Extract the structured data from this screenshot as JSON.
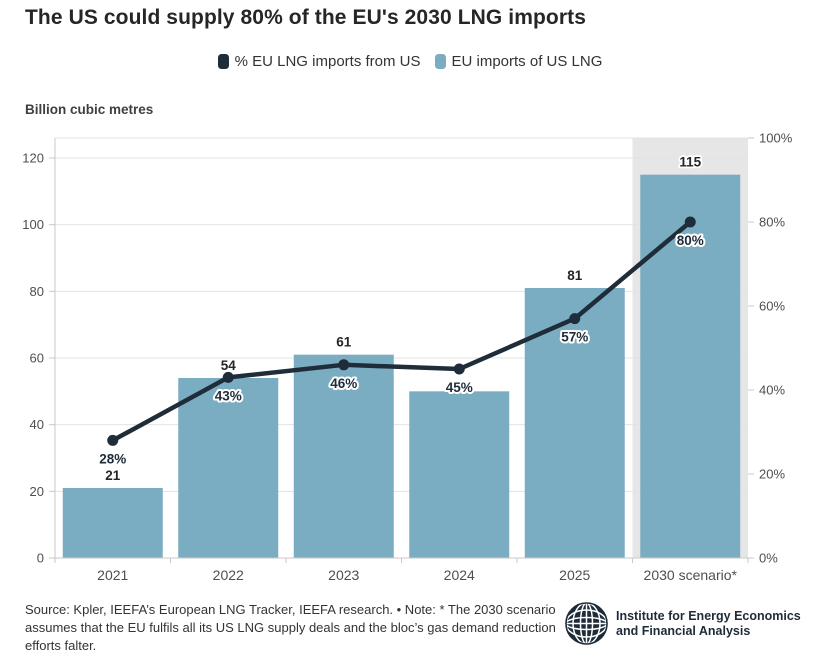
{
  "title": "The US could supply 80% of the EU's 2030 LNG imports",
  "legend": [
    {
      "label": "% EU LNG imports from US",
      "color": "#1f2c3a"
    },
    {
      "label": "EU imports of US LNG",
      "color": "#7aadc1"
    }
  ],
  "chart_data": {
    "type": "bar",
    "subtype": "bar+line combo, dual axis",
    "title": "The US could supply 80% of the EU's 2030 LNG imports",
    "categories": [
      "2021",
      "2022",
      "2023",
      "2024",
      "2025",
      "2030 scenario*"
    ],
    "series": [
      {
        "name": "EU imports of US LNG",
        "type": "bar",
        "axis": "left",
        "color": "#7aadc1",
        "values": [
          21,
          54,
          61,
          50,
          81,
          115
        ],
        "value_labels": [
          "21",
          "54",
          "61",
          "",
          "81",
          "115"
        ]
      },
      {
        "name": "% EU LNG imports from US",
        "type": "line",
        "axis": "right",
        "color": "#1f2c3a",
        "values": [
          28,
          43,
          46,
          45,
          57,
          80
        ],
        "value_labels": [
          "28%",
          "43%",
          "46%",
          "45%",
          "57%",
          "80%"
        ]
      }
    ],
    "left_axis": {
      "label": "Billion cubic metres",
      "ticks": [
        0,
        20,
        40,
        60,
        80,
        100,
        120
      ],
      "max": 126
    },
    "right_axis": {
      "ticks": [
        "0%",
        "20%",
        "40%",
        "60%",
        "80%",
        "100%"
      ],
      "tick_values": [
        0,
        20,
        40,
        60,
        80,
        100
      ],
      "max": 100
    },
    "highlight": {
      "category": "2030 scenario*",
      "color": "#e6e6e6"
    },
    "grid": true,
    "legend_position": "top-center"
  },
  "source_note": "Source: Kpler, IEEFA’s European LNG Tracker, IEEFA research. • Note: * The 2030 scenario assumes that the EU fulfils all its US LNG supply deals and the bloc’s gas demand reduction efforts falter.",
  "logo": {
    "line1": "Institute for Energy Economics",
    "line2": "and Financial Analysis"
  },
  "colors": {
    "bar": "#7aadc1",
    "line": "#1f2c3a",
    "highlight": "#e6e6e6",
    "grid": "#e3e3e3",
    "axis": "#c9c9c9",
    "bar_label": "#262626",
    "tick_label": "#4f4f4f",
    "x_label": "#4f4f4f"
  }
}
